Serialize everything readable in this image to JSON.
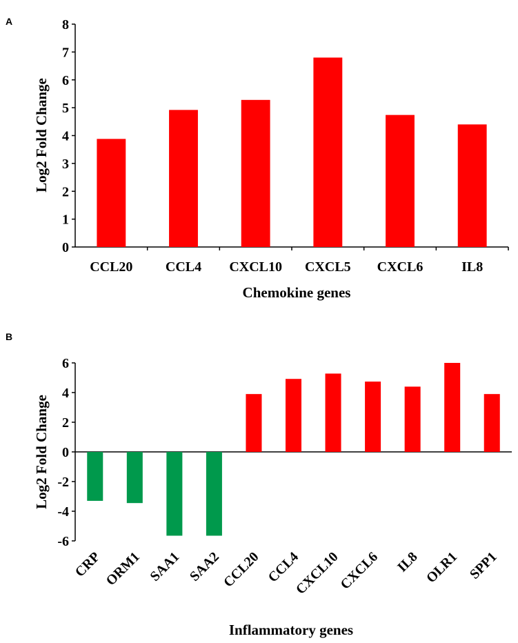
{
  "chart_data": [
    {
      "panel": "A",
      "type": "bar",
      "title": "",
      "xlabel": "Chemokine genes",
      "ylabel": "Log2 Fold Change",
      "ylim": [
        0,
        8
      ],
      "yticks": [
        "0",
        "1",
        "2",
        "3",
        "4",
        "5",
        "6",
        "7",
        "8"
      ],
      "categories": [
        "CCL20",
        "CCL4",
        "CXCL10",
        "CXCL5",
        "CXCL6",
        "IL8"
      ],
      "values": [
        3.88,
        4.92,
        5.28,
        6.8,
        4.74,
        4.4
      ],
      "colors": [
        "#ff0000",
        "#ff0000",
        "#ff0000",
        "#ff0000",
        "#ff0000",
        "#ff0000"
      ],
      "grid": false,
      "legend": "none"
    },
    {
      "panel": "B",
      "type": "bar",
      "title": "",
      "xlabel": "Inflammatory genes",
      "ylabel": "Log2 Fold Change",
      "ylim": [
        -6,
        6
      ],
      "yticks": [
        "-6",
        "-4",
        "-2",
        "0",
        "2",
        "4",
        "6"
      ],
      "categories": [
        "CRP",
        "ORM1",
        "SAA1",
        "SAA2",
        "CCL20",
        "CCL4",
        "CXCL10",
        "CXCL6",
        "IL8",
        "OLR1",
        "SPP1"
      ],
      "values": [
        -3.3,
        -3.45,
        -5.65,
        -5.65,
        3.9,
        4.92,
        5.28,
        4.74,
        4.4,
        6.0,
        3.9
      ],
      "colors": [
        "#00994c",
        "#00994c",
        "#00994c",
        "#00994c",
        "#ff0000",
        "#ff0000",
        "#ff0000",
        "#ff0000",
        "#ff0000",
        "#ff0000",
        "#ff0000"
      ],
      "grid": false,
      "legend": "none"
    }
  ]
}
